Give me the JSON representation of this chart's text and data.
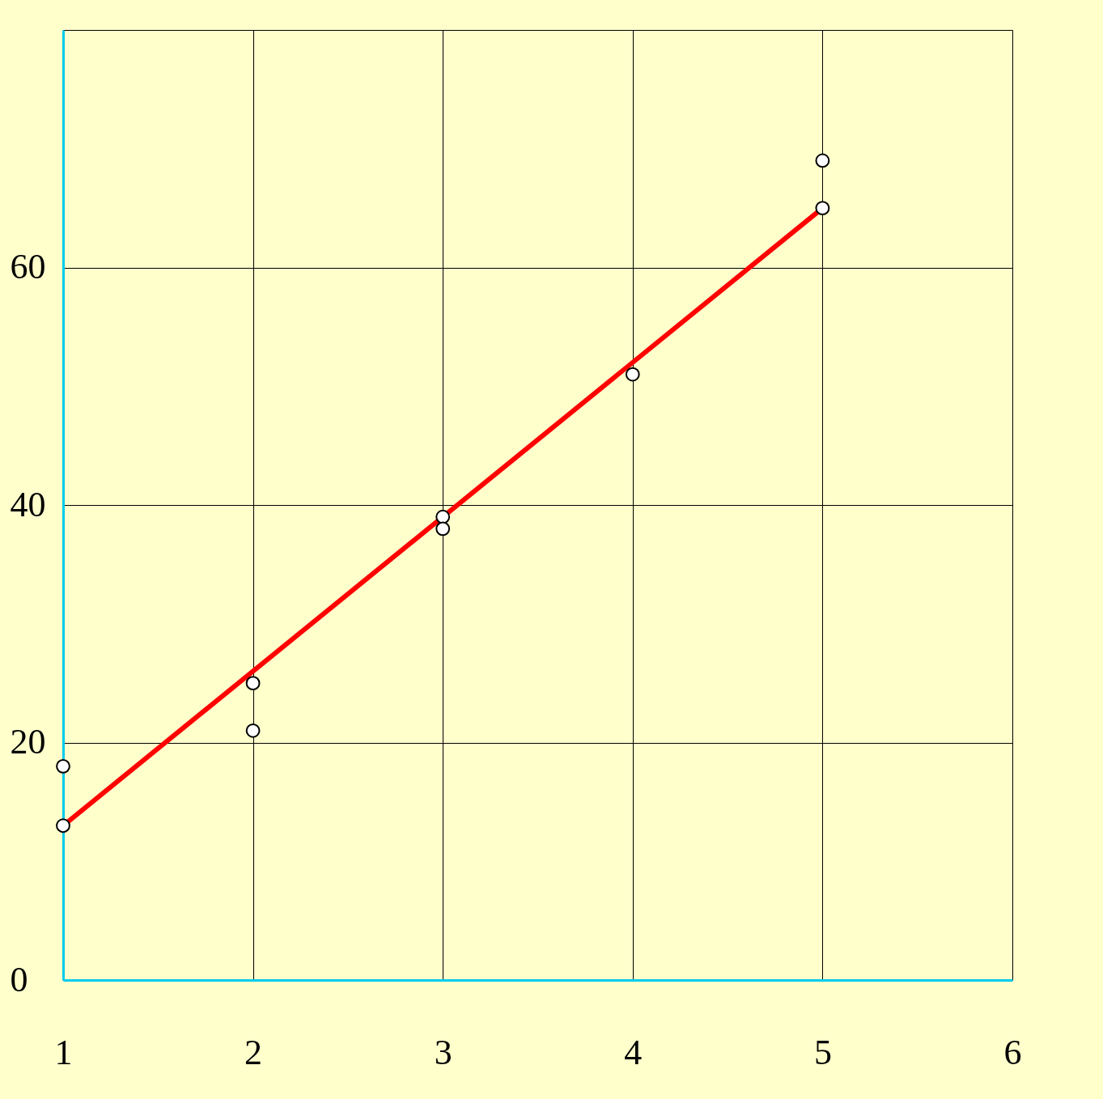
{
  "chart_data": {
    "type": "scatter",
    "xlim": [
      1,
      6
    ],
    "xticks": [
      1,
      2,
      3,
      4,
      5,
      6
    ],
    "ylim": [
      0,
      80
    ],
    "yticks": [
      0,
      20,
      40,
      60,
      {
        "value": 80,
        "label": null
      }
    ],
    "grid": true,
    "series": [
      {
        "color": "#ffffff",
        "marker": "circle",
        "x": [
          1,
          1,
          2,
          2,
          3,
          3,
          4,
          5,
          5
        ],
        "values": [
          18,
          13,
          25,
          21,
          39,
          38,
          51,
          65,
          69
        ]
      },
      {
        "type": "line",
        "color": "#ff0000",
        "x": [
          1,
          5
        ],
        "values": [
          13,
          65
        ]
      }
    ]
  }
}
